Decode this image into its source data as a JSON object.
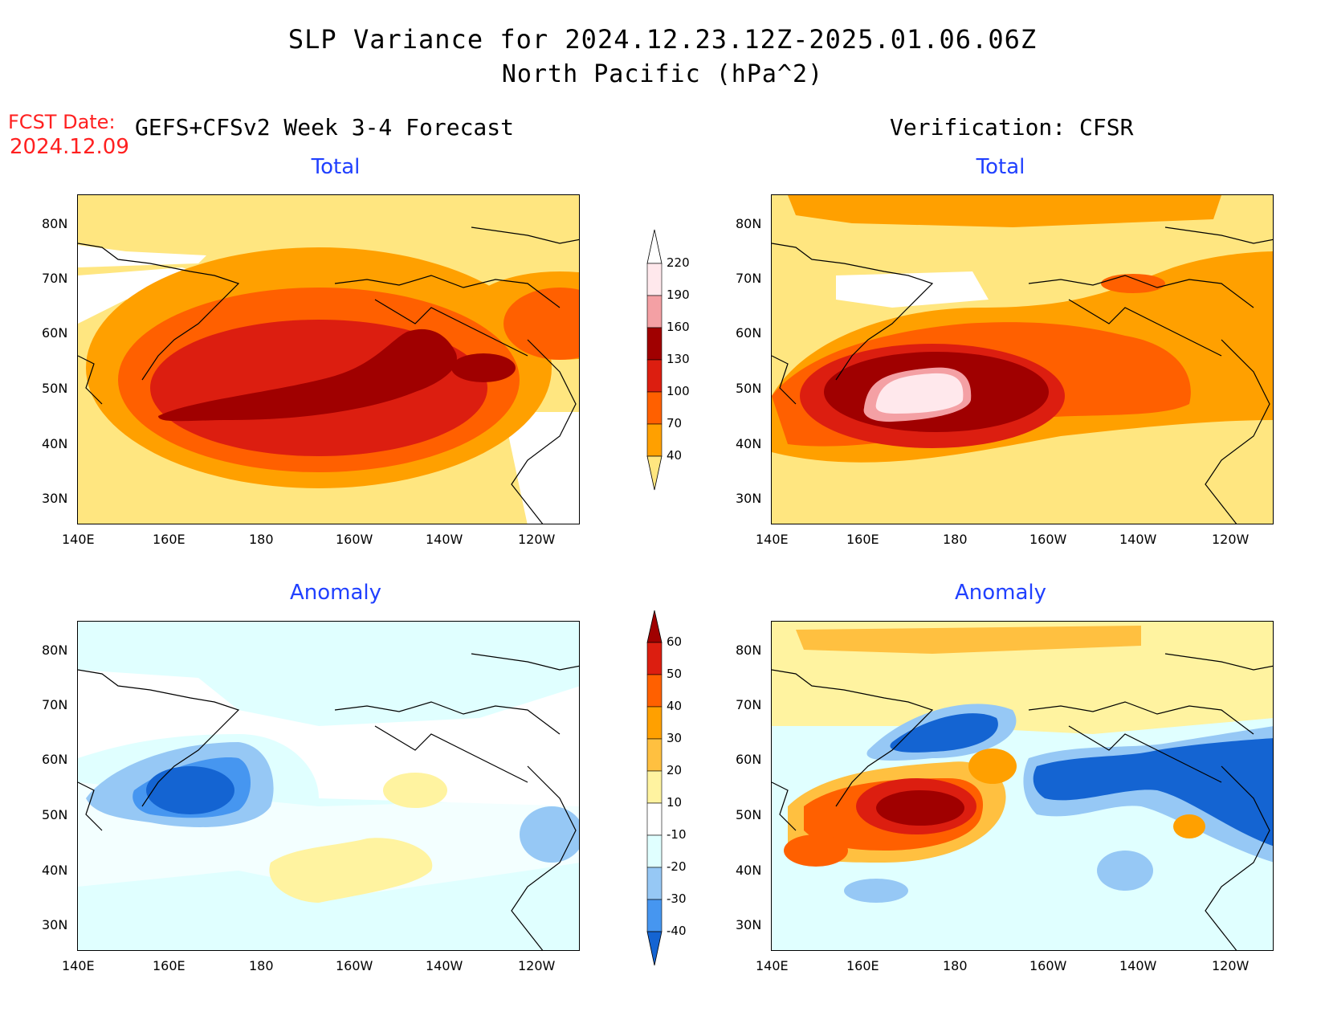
{
  "title": {
    "line1": "SLP Variance for 2024.12.23.12Z-2025.01.06.06Z",
    "line2": "North Pacific (hPa^2)"
  },
  "forecast_date": {
    "label": "FCST Date:",
    "value": "2024.12.09"
  },
  "left_header": "GEFS+CFSv2 Week 3-4 Forecast",
  "right_header": "Verification: CFSR",
  "panels": {
    "top_left_title": "Total",
    "top_right_title": "Total",
    "bottom_left_title": "Anomaly",
    "bottom_right_title": "Anomaly"
  },
  "axes": {
    "lat_labels": [
      "80N",
      "70N",
      "60N",
      "50N",
      "40N",
      "30N"
    ],
    "lon_labels": [
      "140E",
      "160E",
      "180",
      "160W",
      "140W",
      "120W"
    ]
  },
  "colorbars": {
    "total": {
      "levels": [
        "220",
        "190",
        "160",
        "130",
        "100",
        "70",
        "40"
      ],
      "colors": [
        "#ffe8ec",
        "#f4a0a4",
        "#a00000",
        "#dc1e10",
        "#ff6000",
        "#ffa000",
        "#ffe680"
      ]
    },
    "anomaly": {
      "levels": [
        "60",
        "50",
        "40",
        "30",
        "20",
        "10",
        "-10",
        "-20",
        "-30",
        "-40"
      ],
      "colors": [
        "#a00000",
        "#dc1e10",
        "#ff6000",
        "#ffa000",
        "#ffc040",
        "#fff3a0",
        "#ffffff",
        "#e0ffff",
        "#96c8f5",
        "#4696f0",
        "#1464d2"
      ]
    }
  }
}
